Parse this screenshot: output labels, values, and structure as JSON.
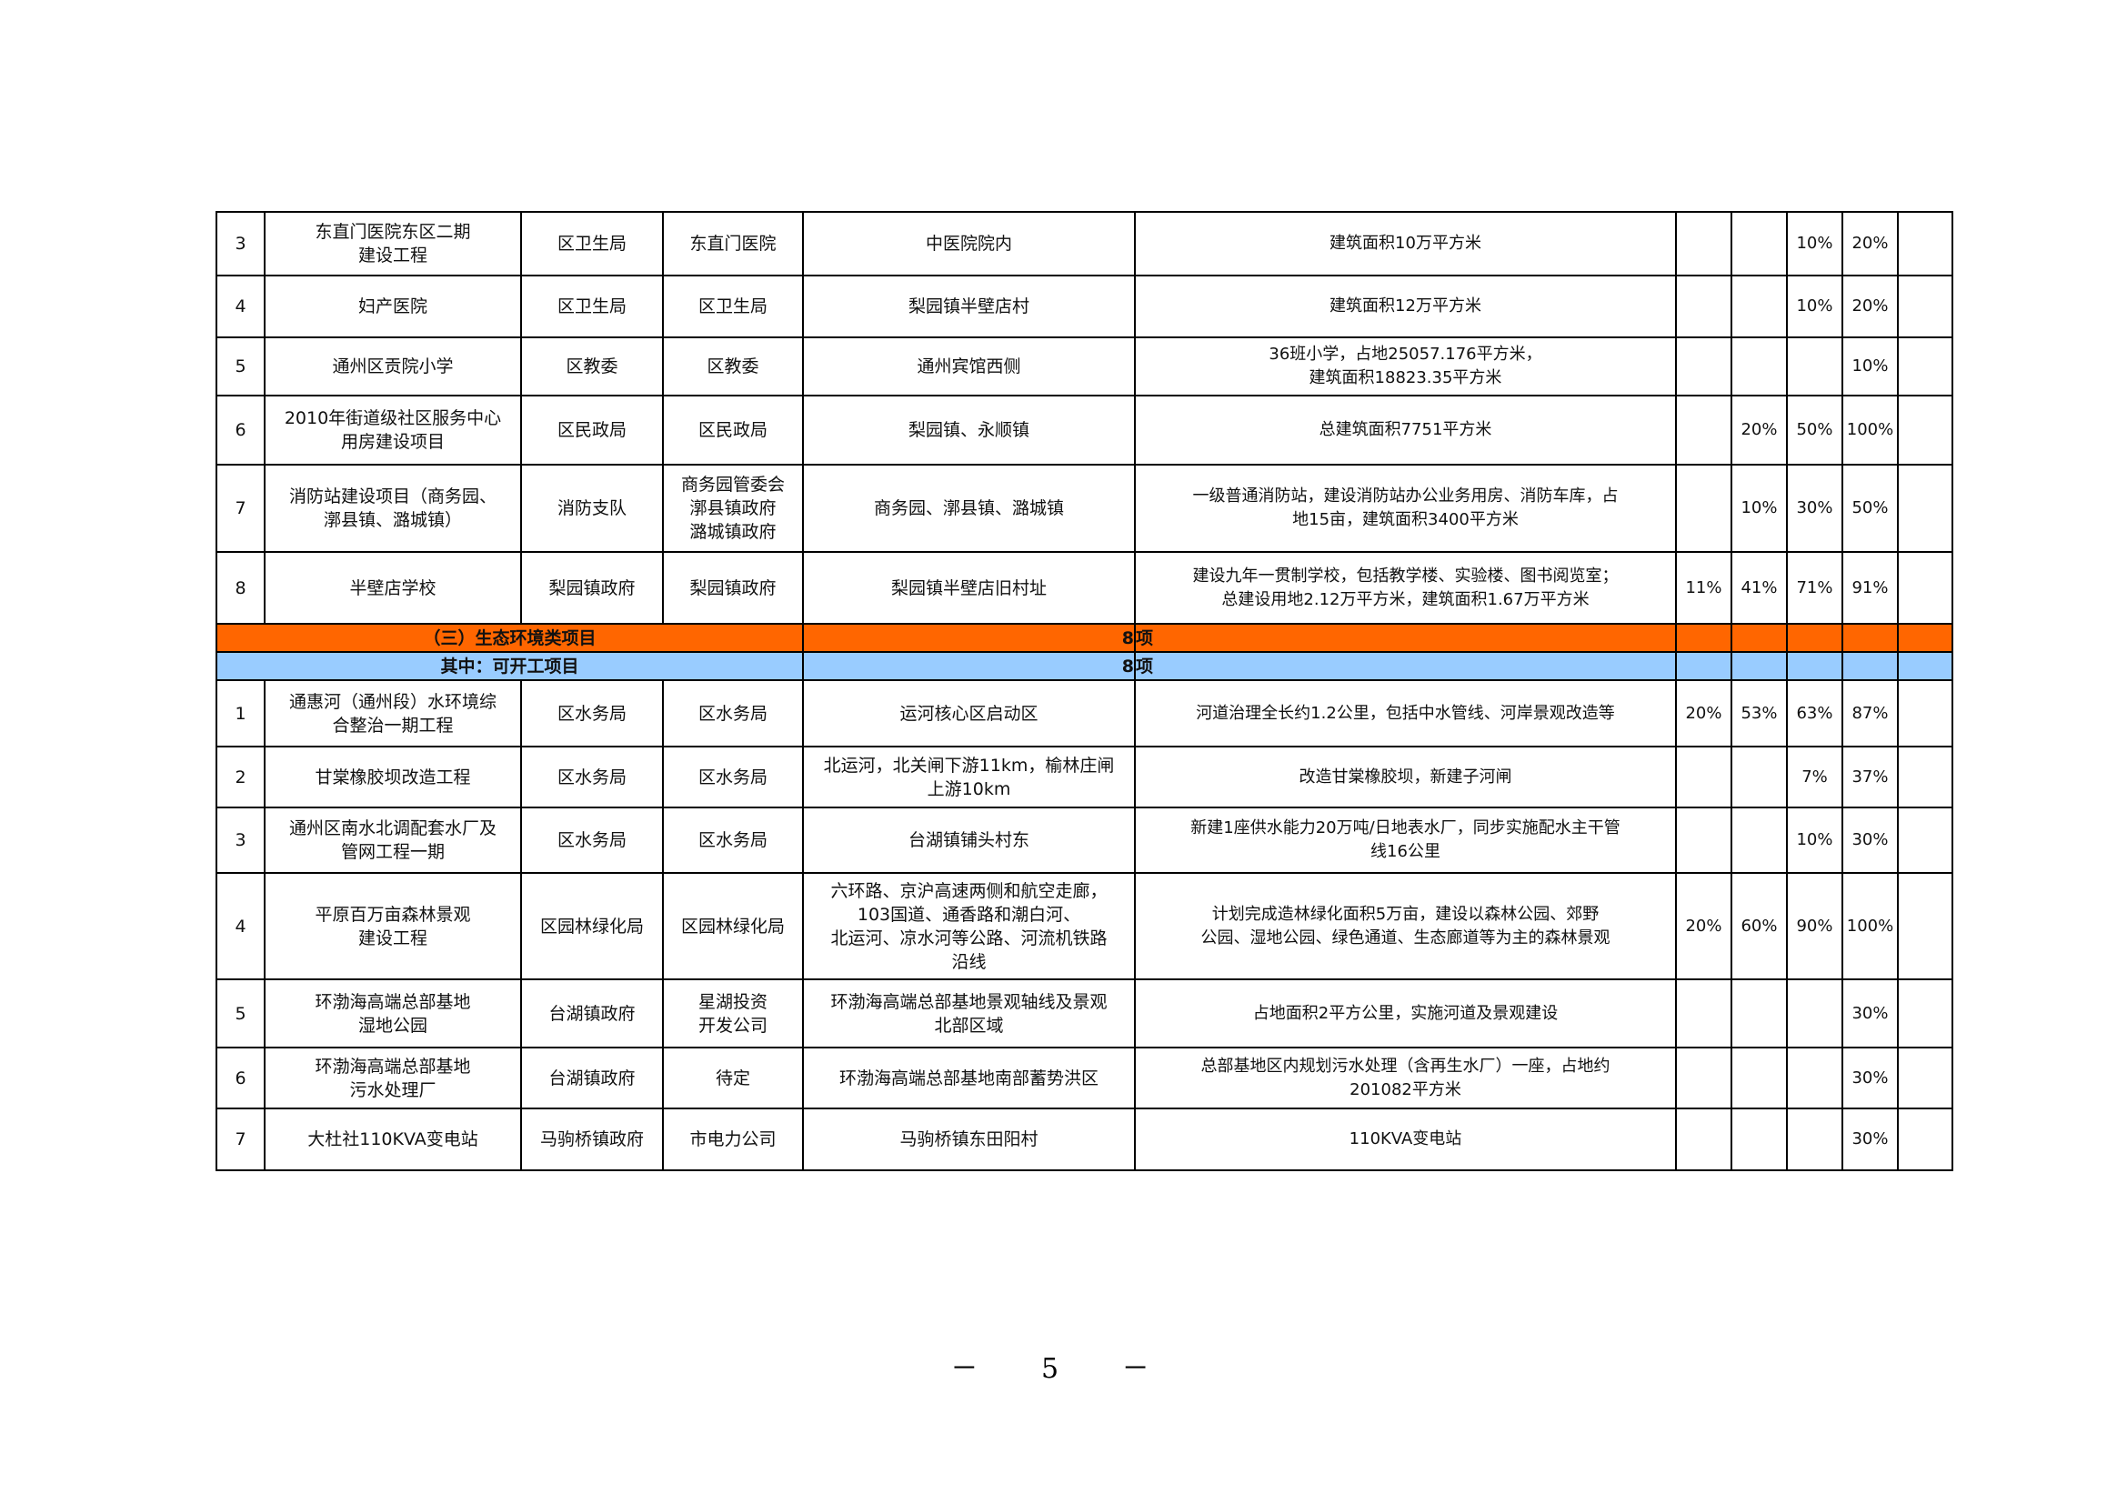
{
  "colors": {
    "section_orange": "#ff6600",
    "section_blue": "#99ccff"
  },
  "rows_a": [
    {
      "no": "3",
      "name": "东直门医院东区二期\n建设工程",
      "dept": "区卫生局",
      "owner": "东直门医院",
      "location": "中医院院内",
      "content": "建筑面积10万平方米",
      "p": [
        "",
        "",
        "10%",
        "20%",
        ""
      ]
    },
    {
      "no": "4",
      "name": "妇产医院",
      "dept": "区卫生局",
      "owner": "区卫生局",
      "location": "梨园镇半壁店村",
      "content": "建筑面积12万平方米",
      "p": [
        "",
        "",
        "10%",
        "20%",
        ""
      ]
    },
    {
      "no": "5",
      "name": "通州区贡院小学",
      "dept": "区教委",
      "owner": "区教委",
      "location": "通州宾馆西侧",
      "content": "36班小学，占地25057.176平方米，\n建筑面积18823.35平方米",
      "p": [
        "",
        "",
        "",
        "10%",
        ""
      ]
    },
    {
      "no": "6",
      "name": "2010年街道级社区服务中心\n用房建设项目",
      "dept": "区民政局",
      "owner": "区民政局",
      "location": "梨园镇、永顺镇",
      "content": "总建筑面积7751平方米",
      "p": [
        "",
        "20%",
        "50%",
        "100%",
        ""
      ]
    },
    {
      "no": "7",
      "name": "消防站建设项目（商务园、\n漷县镇、潞城镇）",
      "dept": "消防支队",
      "owner": "商务园管委会\n漷县镇政府\n潞城镇政府",
      "location": "商务园、漷县镇、潞城镇",
      "content": "一级普通消防站，建设消防站办公业务用房、消防车库，占\n地15亩，建筑面积3400平方米",
      "p": [
        "",
        "10%",
        "30%",
        "50%",
        ""
      ]
    },
    {
      "no": "8",
      "name": "半壁店学校",
      "dept": "梨园镇政府",
      "owner": "梨园镇政府",
      "location": "梨园镇半壁店旧村址",
      "content": "建设九年一贯制学校，包括教学楼、实验楼、图书阅览室；\n总建设用地2.12万平方米，建筑面积1.67万平方米",
      "p": [
        "11%",
        "41%",
        "71%",
        "91%",
        ""
      ]
    }
  ],
  "section_eco": {
    "label": "（三）生态环境类项目",
    "count": "8",
    "unit": "项"
  },
  "section_start": {
    "label": "其中：可开工项目",
    "count": "8",
    "unit": "项"
  },
  "rows_b": [
    {
      "no": "1",
      "name": "通惠河（通州段）水环境综\n合整治一期工程",
      "dept": "区水务局",
      "owner": "区水务局",
      "location": "运河核心区启动区",
      "content": "河道治理全长约1.2公里，包括中水管线、河岸景观改造等",
      "p": [
        "20%",
        "53%",
        "63%",
        "87%",
        ""
      ]
    },
    {
      "no": "2",
      "name": "甘棠橡胶坝改造工程",
      "dept": "区水务局",
      "owner": "区水务局",
      "location": "北运河，北关闸下游11km，榆林庄闸\n上游10km",
      "content": "改造甘棠橡胶坝，新建子河闸",
      "p": [
        "",
        "",
        "7%",
        "37%",
        ""
      ]
    },
    {
      "no": "3",
      "name": "通州区南水北调配套水厂及\n管网工程一期",
      "dept": "区水务局",
      "owner": "区水务局",
      "location": "台湖镇铺头村东",
      "content": "新建1座供水能力20万吨/日地表水厂，同步实施配水主干管\n线16公里",
      "p": [
        "",
        "",
        "10%",
        "30%",
        ""
      ]
    },
    {
      "no": "4",
      "name": "平原百万亩森林景观\n建设工程",
      "dept": "区园林绿化局",
      "owner": "区园林绿化局",
      "location": "六环路、京沪高速两侧和航空走廊，\n103国道、通香路和潮白河、\n北运河、凉水河等公路、河流机铁路\n沿线",
      "content": "计划完成造林绿化面积5万亩，建设以森林公园、郊野\n公园、湿地公园、绿色通道、生态廊道等为主的森林景观",
      "p": [
        "20%",
        "60%",
        "90%",
        "100%",
        ""
      ]
    },
    {
      "no": "5",
      "name": "环渤海高端总部基地\n湿地公园",
      "dept": "台湖镇政府",
      "owner": "星湖投资\n开发公司",
      "location": "环渤海高端总部基地景观轴线及景观\n北部区域",
      "content": "占地面积2平方公里，实施河道及景观建设",
      "p": [
        "",
        "",
        "",
        "30%",
        ""
      ]
    },
    {
      "no": "6",
      "name": "环渤海高端总部基地\n污水处理厂",
      "dept": "台湖镇政府",
      "owner": "待定",
      "location": "环渤海高端总部基地南部蓄势洪区",
      "content": "总部基地区内规划污水处理（含再生水厂）一座，占地约\n201082平方米",
      "p": [
        "",
        "",
        "",
        "30%",
        ""
      ]
    },
    {
      "no": "7",
      "name": "大杜社110KVA变电站",
      "dept": "马驹桥镇政府",
      "owner": "市电力公司",
      "location": "马驹桥镇东田阳村",
      "content": "110KVA变电站",
      "p": [
        "",
        "",
        "",
        "30%",
        ""
      ]
    }
  ],
  "page_number": "－ 5 －"
}
